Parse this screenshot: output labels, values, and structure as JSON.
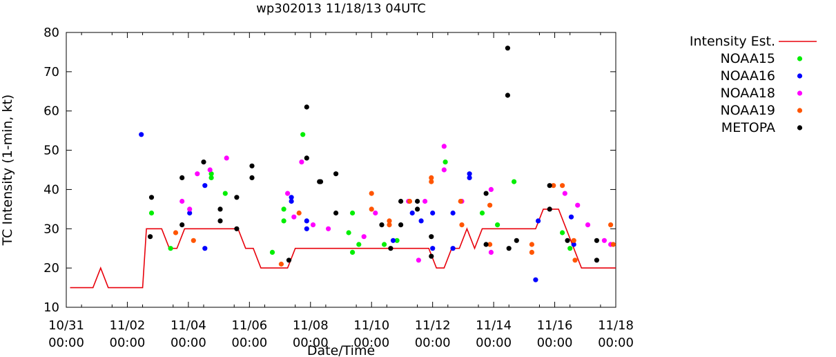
{
  "chart_data": {
    "type": "scatter",
    "title": "wp302013 11/18/13 04UTC",
    "xlabel": "Date/Time",
    "ylabel": "TC Intensity (1-min, kt)",
    "x_unit": "hours since 10/31 00:00",
    "xlim": [
      0,
      432
    ],
    "ylim": [
      10,
      80
    ],
    "y_ticks": [
      10,
      20,
      30,
      40,
      50,
      60,
      70,
      80
    ],
    "x_ticks": [
      {
        "x": 0,
        "line1": "10/31",
        "line2": "00:00"
      },
      {
        "x": 48,
        "line1": "11/02",
        "line2": "00:00"
      },
      {
        "x": 96,
        "line1": "11/04",
        "line2": "00:00"
      },
      {
        "x": 144,
        "line1": "11/06",
        "line2": "00:00"
      },
      {
        "x": 192,
        "line1": "11/08",
        "line2": "00:00"
      },
      {
        "x": 240,
        "line1": "11/10",
        "line2": "00:00"
      },
      {
        "x": 288,
        "line1": "11/12",
        "line2": "00:00"
      },
      {
        "x": 336,
        "line1": "11/14",
        "line2": "00:00"
      },
      {
        "x": 384,
        "line1": "11/16",
        "line2": "00:00"
      },
      {
        "x": 432,
        "line1": "11/18",
        "line2": "00:00"
      }
    ],
    "legend_position": "outside-right",
    "series": [
      {
        "name": "Intensity Est.",
        "kind": "line",
        "color": "#e8000b",
        "points": [
          [
            3,
            15
          ],
          [
            21,
            15
          ],
          [
            27,
            20
          ],
          [
            33,
            15
          ],
          [
            60,
            15
          ],
          [
            63,
            30
          ],
          [
            75,
            30
          ],
          [
            81,
            25
          ],
          [
            87,
            25
          ],
          [
            93,
            30
          ],
          [
            135,
            30
          ],
          [
            141,
            25
          ],
          [
            147,
            25
          ],
          [
            153,
            20
          ],
          [
            174,
            20
          ],
          [
            180,
            25
          ],
          [
            234,
            25
          ],
          [
            285,
            25
          ],
          [
            291,
            20
          ],
          [
            297,
            20
          ],
          [
            303,
            25
          ],
          [
            309,
            25
          ],
          [
            315,
            30
          ],
          [
            321,
            25
          ],
          [
            327,
            30
          ],
          [
            369,
            30
          ],
          [
            375,
            35
          ],
          [
            387,
            35
          ],
          [
            405,
            20
          ],
          [
            432,
            20
          ]
        ]
      },
      {
        "name": "NOAA15",
        "kind": "points",
        "color": "#00ee00",
        "points": [
          [
            67,
            34
          ],
          [
            82,
            25
          ],
          [
            114,
            43
          ],
          [
            114,
            44
          ],
          [
            125,
            39
          ],
          [
            162,
            24
          ],
          [
            171,
            35
          ],
          [
            171,
            32
          ],
          [
            186,
            54
          ],
          [
            222,
            29
          ],
          [
            225,
            34
          ],
          [
            225,
            24
          ],
          [
            230,
            26
          ],
          [
            250,
            26
          ],
          [
            260,
            27
          ],
          [
            298,
            47
          ],
          [
            327,
            34
          ],
          [
            339,
            31
          ],
          [
            352,
            42
          ],
          [
            390,
            29
          ],
          [
            396,
            25
          ]
        ]
      },
      {
        "name": "NOAA16",
        "kind": "points",
        "color": "#0000ff",
        "points": [
          [
            59,
            54
          ],
          [
            97,
            34
          ],
          [
            109,
            41
          ],
          [
            109,
            25
          ],
          [
            177,
            38
          ],
          [
            177,
            37
          ],
          [
            189,
            32
          ],
          [
            189,
            30
          ],
          [
            257,
            27
          ],
          [
            272,
            34
          ],
          [
            279,
            32
          ],
          [
            288,
            34
          ],
          [
            288,
            25
          ],
          [
            304,
            34
          ],
          [
            304,
            25
          ],
          [
            317,
            44
          ],
          [
            317,
            43
          ],
          [
            369,
            17
          ],
          [
            371,
            32
          ],
          [
            397,
            33
          ],
          [
            399,
            26
          ]
        ]
      },
      {
        "name": "NOAA18",
        "kind": "points",
        "color": "#ff00ff",
        "points": [
          [
            91,
            37
          ],
          [
            97,
            35
          ],
          [
            103,
            44
          ],
          [
            113,
            45
          ],
          [
            126,
            48
          ],
          [
            174,
            39
          ],
          [
            179,
            33
          ],
          [
            185,
            47
          ],
          [
            194,
            31
          ],
          [
            206,
            30
          ],
          [
            234,
            28
          ],
          [
            243,
            34
          ],
          [
            269,
            37
          ],
          [
            277,
            22
          ],
          [
            282,
            37
          ],
          [
            297,
            51
          ],
          [
            297,
            45
          ],
          [
            311,
            37
          ],
          [
            334,
            40
          ],
          [
            334,
            24
          ],
          [
            392,
            39
          ],
          [
            402,
            36
          ],
          [
            410,
            31
          ],
          [
            423,
            27
          ],
          [
            428,
            26
          ]
        ]
      },
      {
        "name": "NOAA19",
        "kind": "points",
        "color": "#ff5500",
        "points": [
          [
            86,
            29
          ],
          [
            100,
            27
          ],
          [
            169,
            21
          ],
          [
            183,
            34
          ],
          [
            240,
            39
          ],
          [
            240,
            35
          ],
          [
            254,
            31
          ],
          [
            254,
            32
          ],
          [
            270,
            37
          ],
          [
            287,
            42
          ],
          [
            287,
            43
          ],
          [
            310,
            37
          ],
          [
            311,
            31
          ],
          [
            333,
            36
          ],
          [
            333,
            26
          ],
          [
            366,
            26
          ],
          [
            366,
            24
          ],
          [
            383,
            41
          ],
          [
            390,
            41
          ],
          [
            399,
            27
          ],
          [
            400,
            22
          ],
          [
            428,
            31
          ],
          [
            430,
            26
          ]
        ]
      },
      {
        "name": "METOPA",
        "kind": "points",
        "color": "#000000",
        "points": [
          [
            66,
            28
          ],
          [
            67,
            38
          ],
          [
            91,
            43
          ],
          [
            91,
            31
          ],
          [
            108,
            47
          ],
          [
            121,
            35
          ],
          [
            121,
            32
          ],
          [
            134,
            38
          ],
          [
            134,
            30
          ],
          [
            146,
            46
          ],
          [
            146,
            43
          ],
          [
            175,
            22
          ],
          [
            189,
            61
          ],
          [
            189,
            48
          ],
          [
            199,
            42
          ],
          [
            200,
            42
          ],
          [
            212,
            44
          ],
          [
            212,
            34
          ],
          [
            248,
            31
          ],
          [
            255,
            25
          ],
          [
            263,
            37
          ],
          [
            263,
            31
          ],
          [
            276,
            37
          ],
          [
            276,
            35
          ],
          [
            287,
            28
          ],
          [
            287,
            23
          ],
          [
            330,
            39
          ],
          [
            330,
            26
          ],
          [
            348,
            25
          ],
          [
            347,
            76
          ],
          [
            347,
            64
          ],
          [
            354,
            27
          ],
          [
            380,
            41
          ],
          [
            380,
            35
          ],
          [
            394,
            27
          ],
          [
            417,
            22
          ],
          [
            417,
            27
          ]
        ]
      }
    ]
  }
}
